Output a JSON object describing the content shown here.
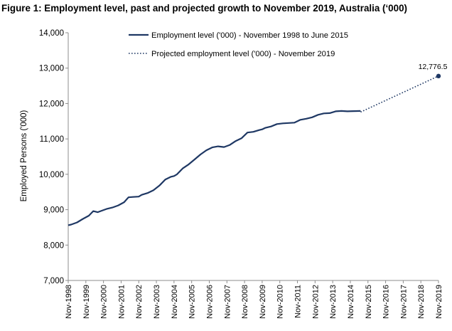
{
  "title": "Figure 1: Employment level, past and projected growth to November 2019, Australia (‘000)",
  "chart_data": {
    "type": "line",
    "title": "Figure 1: Employment level, past and projected growth to November 2019, Australia (‘000)",
    "ylabel": "Employed Persons ('000)",
    "xlabel": "",
    "ylim": [
      7000,
      14000
    ],
    "yticks": [
      7000,
      8000,
      9000,
      10000,
      11000,
      12000,
      13000,
      14000
    ],
    "ytick_labels": [
      "7,000",
      "8,000",
      "9,000",
      "10,000",
      "11,000",
      "12,000",
      "13,000",
      "14,000"
    ],
    "xlim": [
      1998.833,
      2019.833
    ],
    "xtick_labels": [
      "Nov-1998",
      "Nov-1999",
      "Nov-2000",
      "Nov-2001",
      "Nov-2002",
      "Nov-2003",
      "Nov-2004",
      "Nov-2005",
      "Nov-2006",
      "Nov-2007",
      "Nov-2008",
      "Nov-2009",
      "Nov-2010",
      "Nov-2011",
      "Nov-2012",
      "Nov-2013",
      "Nov-2014",
      "Nov-2015",
      "Nov-2016",
      "Nov-2017",
      "Nov-2018",
      "Nov-2019"
    ],
    "grid": false,
    "legend_position": "top-center",
    "series": [
      {
        "name": "Employment level ('000) - November 1998 to June 2015",
        "style": "solid",
        "color": "#1f3864",
        "x": [
          1998.833,
          1999.0,
          1999.333,
          1999.667,
          2000.0,
          2000.25,
          2000.5,
          2000.833,
          2001.0,
          2001.333,
          2001.667,
          2002.0,
          2002.25,
          2002.5,
          2002.833,
          2003.0,
          2003.333,
          2003.667,
          2004.0,
          2004.333,
          2004.667,
          2004.833,
          2005.0,
          2005.333,
          2005.667,
          2006.0,
          2006.333,
          2006.667,
          2007.0,
          2007.333,
          2007.667,
          2008.0,
          2008.333,
          2008.667,
          2009.0,
          2009.333,
          2009.667,
          2009.833,
          2010.0,
          2010.333,
          2010.667,
          2011.0,
          2011.333,
          2011.667,
          2012.0,
          2012.333,
          2012.667,
          2013.0,
          2013.333,
          2013.667,
          2014.0,
          2014.333,
          2014.667,
          2015.0,
          2015.417
        ],
        "y": [
          8560,
          8580,
          8640,
          8740,
          8830,
          8960,
          8930,
          8990,
          9020,
          9060,
          9120,
          9210,
          9350,
          9360,
          9370,
          9420,
          9470,
          9550,
          9680,
          9850,
          9930,
          9950,
          10000,
          10170,
          10280,
          10420,
          10560,
          10680,
          10760,
          10790,
          10770,
          10830,
          10940,
          11020,
          11180,
          11200,
          11250,
          11270,
          11310,
          11350,
          11420,
          11440,
          11450,
          11460,
          11540,
          11570,
          11610,
          11680,
          11720,
          11730,
          11780,
          11790,
          11780,
          11785,
          11790
        ],
        "note_values_source": "read from line shape"
      },
      {
        "name": "Projected employment level ('000) - November 2019",
        "style": "dotted",
        "color": "#1f3864",
        "x": [
          2015.417,
          2019.833
        ],
        "y": [
          11760,
          12776.5
        ]
      }
    ],
    "annotations": [
      {
        "text": "12,776.5",
        "x": 2019.833,
        "y": 12776.5
      }
    ]
  }
}
